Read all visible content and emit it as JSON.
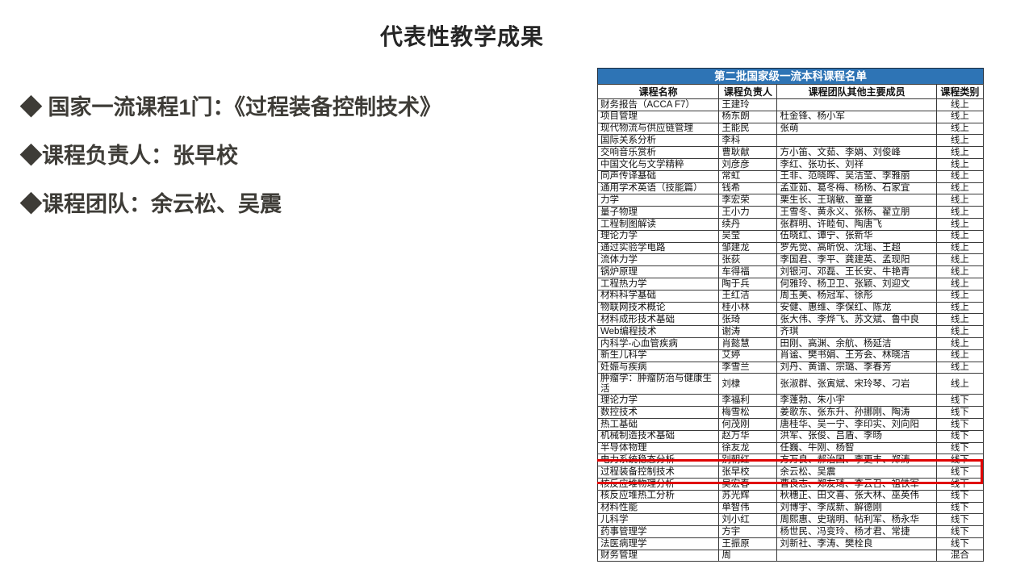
{
  "slide": {
    "title": "代表性教学成果",
    "bullets": [
      {
        "label": "◆ 国家一流课程1门：《过程装备控制技术》"
      },
      {
        "label": "◆课程负责人：张早校"
      },
      {
        "label": "◆课程团队：余云松、吴震"
      }
    ]
  },
  "table": {
    "title": "第二批国家级一流本科课程名单",
    "headers": [
      "课程名称",
      "课程负责人",
      "课程团队其他主要成员",
      "课程类别"
    ],
    "highlight_row_index": 30,
    "colors": {
      "title_bg": "#2E74B5",
      "header_bg": "#ffffff",
      "grid_line": "#3a3a3a",
      "highlight_border": "#E00000"
    },
    "rows": [
      [
        "财务报告（ACCA F7）",
        "王建玲",
        "",
        "线上"
      ],
      [
        "项目管理",
        "杨东朗",
        "杜金锋、杨小军",
        "线上"
      ],
      [
        "现代物流与供应链管理",
        "王能民",
        "张萌",
        "线上"
      ],
      [
        "国际关系分析",
        "李科",
        "",
        "线上"
      ],
      [
        "交响音乐赏析",
        "曹耿献",
        "方小笛、文茹、李娟、刘俊峰",
        "线上"
      ],
      [
        "中国文化与文学精粹",
        "刘彦彦",
        "李红、张功长、刘祥",
        "线上"
      ],
      [
        "同声传译基础",
        "常虹",
        "王非、范晓晖、吴洁莹、李雅丽",
        "线上"
      ],
      [
        "通用学术英语（技能篇）",
        "钱希",
        "孟亚茹、葛冬梅、杨杨、石家宜",
        "线上"
      ],
      [
        "力学",
        "李宏荣",
        "栗生长、王瑞敏、童童",
        "线上"
      ],
      [
        "量子物理",
        "王小力",
        "王雪冬、黄永义、张杨、翟立朋",
        "线上"
      ],
      [
        "工程制图解读",
        "续丹",
        "张群明、许睦旬、陶唐飞",
        "线上"
      ],
      [
        "理论力学",
        "吴莹",
        "伍晓红、谭宁、张新华",
        "线上"
      ],
      [
        "通过实验学电路",
        "邹建龙",
        "罗先觉、高昕悦、沈瑶、王超",
        "线上"
      ],
      [
        "流体力学",
        "张荻",
        "李国君、李平、龚建英、孟现阳",
        "线上"
      ],
      [
        "锅炉原理",
        "车得福",
        "刘银河、邓磊、王长安、牛艳青",
        "线上"
      ],
      [
        "工程热力学",
        "陶于兵",
        "何雅玲、杨卫卫、张颖、刘迎文",
        "线上"
      ],
      [
        "材料科学基础",
        "王红洁",
        "周玉美、杨冠军、徐彤",
        "线上"
      ],
      [
        "物联网技术概论",
        "桂小林",
        "安健、惠维、李保红、陈龙",
        "线上"
      ],
      [
        "材料成形技术基础",
        "张琦",
        "张大伟、李烨飞、苏文斌、鲁中良",
        "线上"
      ],
      [
        "Web编程技术",
        "谢涛",
        "齐琪",
        "线上"
      ],
      [
        "内科学-心血管疾病",
        "肖懿慧",
        "田刚、高渊、余航、杨延洁",
        "线上"
      ],
      [
        "新生儿科学",
        "艾婷",
        "肖谧、樊书娟、王芳会、林晓洁",
        "线上"
      ],
      [
        "妊娠与疾病",
        "李雪兰",
        "刘丹、黄谱、宗璐、李春芳",
        "线上"
      ],
      [
        "肿瘤学：肿瘤防治与健康生活",
        "刘棣",
        "张淑群、张寅斌、宋玲琴、刁岩",
        "线上"
      ],
      [
        "理论力学",
        "李福利",
        "李蓬勃、朱小宇",
        "线下"
      ],
      [
        "数控技术",
        "梅雪松",
        "姜歌东、张东升、孙挪刚、陶涛",
        "线下"
      ],
      [
        "热工基础",
        "何茂刚",
        "唐桂华、吴一宁、李印实、刘向阳",
        "线下"
      ],
      [
        "机械制造技术基础",
        "赵万华",
        "洪军、张俊、吕盾、李旸",
        "线下"
      ],
      [
        "半导体物理",
        "徐友龙",
        "任巍、牛刚、杨智",
        "线下"
      ],
      [
        "电力系统稳态分析",
        "别朝红",
        "方万良、郝治国、李更丰、郑涛",
        "线下"
      ],
      [
        "过程装备控制技术",
        "张早校",
        "余云松、吴震",
        "线下"
      ],
      [
        "核反应堆物理分析",
        "吴宏春",
        "曹良志、郑友琦、李云召、祖铁军",
        "线下"
      ],
      [
        "核反应堆热工分析",
        "苏光辉",
        "秋穗正、田文喜、张大林、巫英伟",
        "线下"
      ],
      [
        "材料性能",
        "单智伟",
        "刘博宇、李成新、解德刚",
        "线下"
      ],
      [
        "儿科学",
        "刘小红",
        "周熙惠、史瑞明、帖利军、杨永华",
        "线下"
      ],
      [
        "药事管理学",
        "方宇",
        "杨世民、冯变玲、杨才君、常捷",
        "线下"
      ],
      [
        "法医病理学",
        "王振原",
        "刘新社、李涛、樊栓良",
        "线下"
      ],
      [
        "财务管理",
        "周",
        "",
        "混合"
      ]
    ]
  }
}
